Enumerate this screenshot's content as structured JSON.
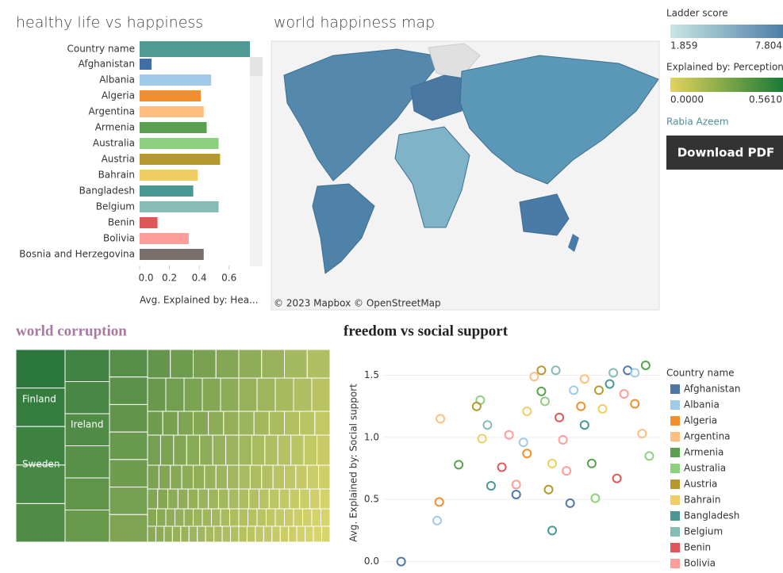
{
  "chart_data": [
    {
      "type": "barh",
      "title": "healthy life vs happiness",
      "category_label": "Country name",
      "x_label": "Avg. Explained by: Hea...",
      "categories": [
        "Afghanistan",
        "Albania",
        "Algeria",
        "Argentina",
        "Armenia",
        "Australia",
        "Austria",
        "Bahrain",
        "Bangladesh",
        "Belgium",
        "Benin",
        "Bolivia",
        "Bosnia and Herzegovina"
      ],
      "values": [
        0.08,
        0.48,
        0.41,
        0.43,
        0.45,
        0.53,
        0.54,
        0.39,
        0.36,
        0.53,
        0.12,
        0.33,
        0.43
      ],
      "colors": [
        "#3f6fa6",
        "#a0cbe8",
        "#f28e2b",
        "#ffbe7d",
        "#59a14f",
        "#8cd17d",
        "#b6992d",
        "#f1ce63",
        "#499894",
        "#86bcb6",
        "#e15759",
        "#ff9d9a",
        "#79706e"
      ],
      "xlim": [
        0,
        0.74
      ],
      "xticks": [
        {
          "value": 0,
          "label": "0.0"
        },
        0.2,
        0.4,
        0.6
      ]
    },
    {
      "type": "scatter",
      "title": "freedom vs social support",
      "y_label": "Avg. Explained by: Social support",
      "legend_title": "Country name",
      "xlim": [
        -0.05,
        0.72
      ],
      "ylim": [
        -0.06,
        1.65
      ],
      "yticks": [
        {
          "value": 0,
          "label": "0.0"
        },
        0.5,
        {
          "value": 1,
          "label": "1.0"
        },
        1.5
      ],
      "grid": true,
      "series": [
        {
          "name": "Afghanistan",
          "color": "#4e79a7",
          "x": [
            0,
            0.32,
            0.47,
            0.63
          ],
          "values": [
            0,
            0.54,
            0.47,
            1.54
          ]
        },
        {
          "name": "Albania",
          "color": "#a0cbe8",
          "x": [
            0.1,
            0.34,
            0.48,
            0.65
          ],
          "values": [
            0.33,
            0.96,
            1.38,
            1.52
          ]
        },
        {
          "name": "Algeria",
          "color": "#f28e2b",
          "x": [
            0.106,
            0.35,
            0.5,
            0.65
          ],
          "values": [
            0.48,
            0.87,
            1.25,
            1.27
          ]
        },
        {
          "name": "Argentina",
          "color": "#ffbe7d",
          "x": [
            0.109,
            0.37,
            0.51,
            0.67
          ],
          "values": [
            1.15,
            1.49,
            1.47,
            1.03
          ]
        },
        {
          "name": "Armenia",
          "color": "#59a14f",
          "x": [
            0.16,
            0.39,
            0.53,
            0.68
          ],
          "values": [
            0.78,
            1.37,
            0.79,
            1.58
          ]
        },
        {
          "name": "Australia",
          "color": "#8cd17d",
          "x": [
            0.22,
            0.4,
            0.54,
            0.69
          ],
          "values": [
            1.3,
            1.29,
            0.51,
            0.85
          ]
        },
        {
          "name": "Austria",
          "color": "#b6992d",
          "x": [
            0.21,
            0.41,
            0.55,
            0.39
          ],
          "values": [
            1.25,
            0.58,
            1.38,
            1.54
          ]
        },
        {
          "name": "Bahrain",
          "color": "#f1ce63",
          "x": [
            0.225,
            0.42,
            0.56,
            0.35
          ],
          "values": [
            0.99,
            0.79,
            1.23,
            1.21
          ]
        },
        {
          "name": "Bangladesh",
          "color": "#499894",
          "x": [
            0.25,
            0.42,
            0.58,
            0.51
          ],
          "values": [
            0.61,
            0.25,
            1.43,
            1.1
          ]
        },
        {
          "name": "Belgium",
          "color": "#86bcb6",
          "x": [
            0.24,
            0.43,
            0.59
          ],
          "values": [
            1.1,
            1.54,
            1.52
          ]
        },
        {
          "name": "Benin",
          "color": "#e15759",
          "x": [
            0.28,
            0.44,
            0.6
          ],
          "values": [
            0.76,
            1.16,
            0.67
          ]
        },
        {
          "name": "Bolivia",
          "color": "#ff9d9a",
          "x": [
            0.3,
            0.45,
            0.62,
            0.32,
            0.46
          ],
          "values": [
            1.02,
            0.98,
            1.35,
            0.62,
            0.73
          ]
        }
      ]
    }
  ],
  "map": {
    "title": "world happiness map",
    "attribution": "© 2023 Mapbox © OpenStreetMap",
    "legends": [
      {
        "title": "Ladder score",
        "min": "1.859",
        "max": "7.804",
        "colors": [
          "#c9e6e3",
          "#4d7ea8"
        ]
      },
      {
        "title": "Explained by: Perception...",
        "min": "0.0000",
        "max": "0.5610",
        "colors": [
          "#e3d35a",
          "#1a7a37"
        ]
      }
    ]
  },
  "author": "Rabia Azeem",
  "button": "Download PDF",
  "treemap": {
    "title": "world corruption",
    "labels": [
      "Finland",
      "Ireland",
      "Sweden"
    ],
    "colors": [
      "#1b6f37",
      "#d8d46c"
    ]
  }
}
